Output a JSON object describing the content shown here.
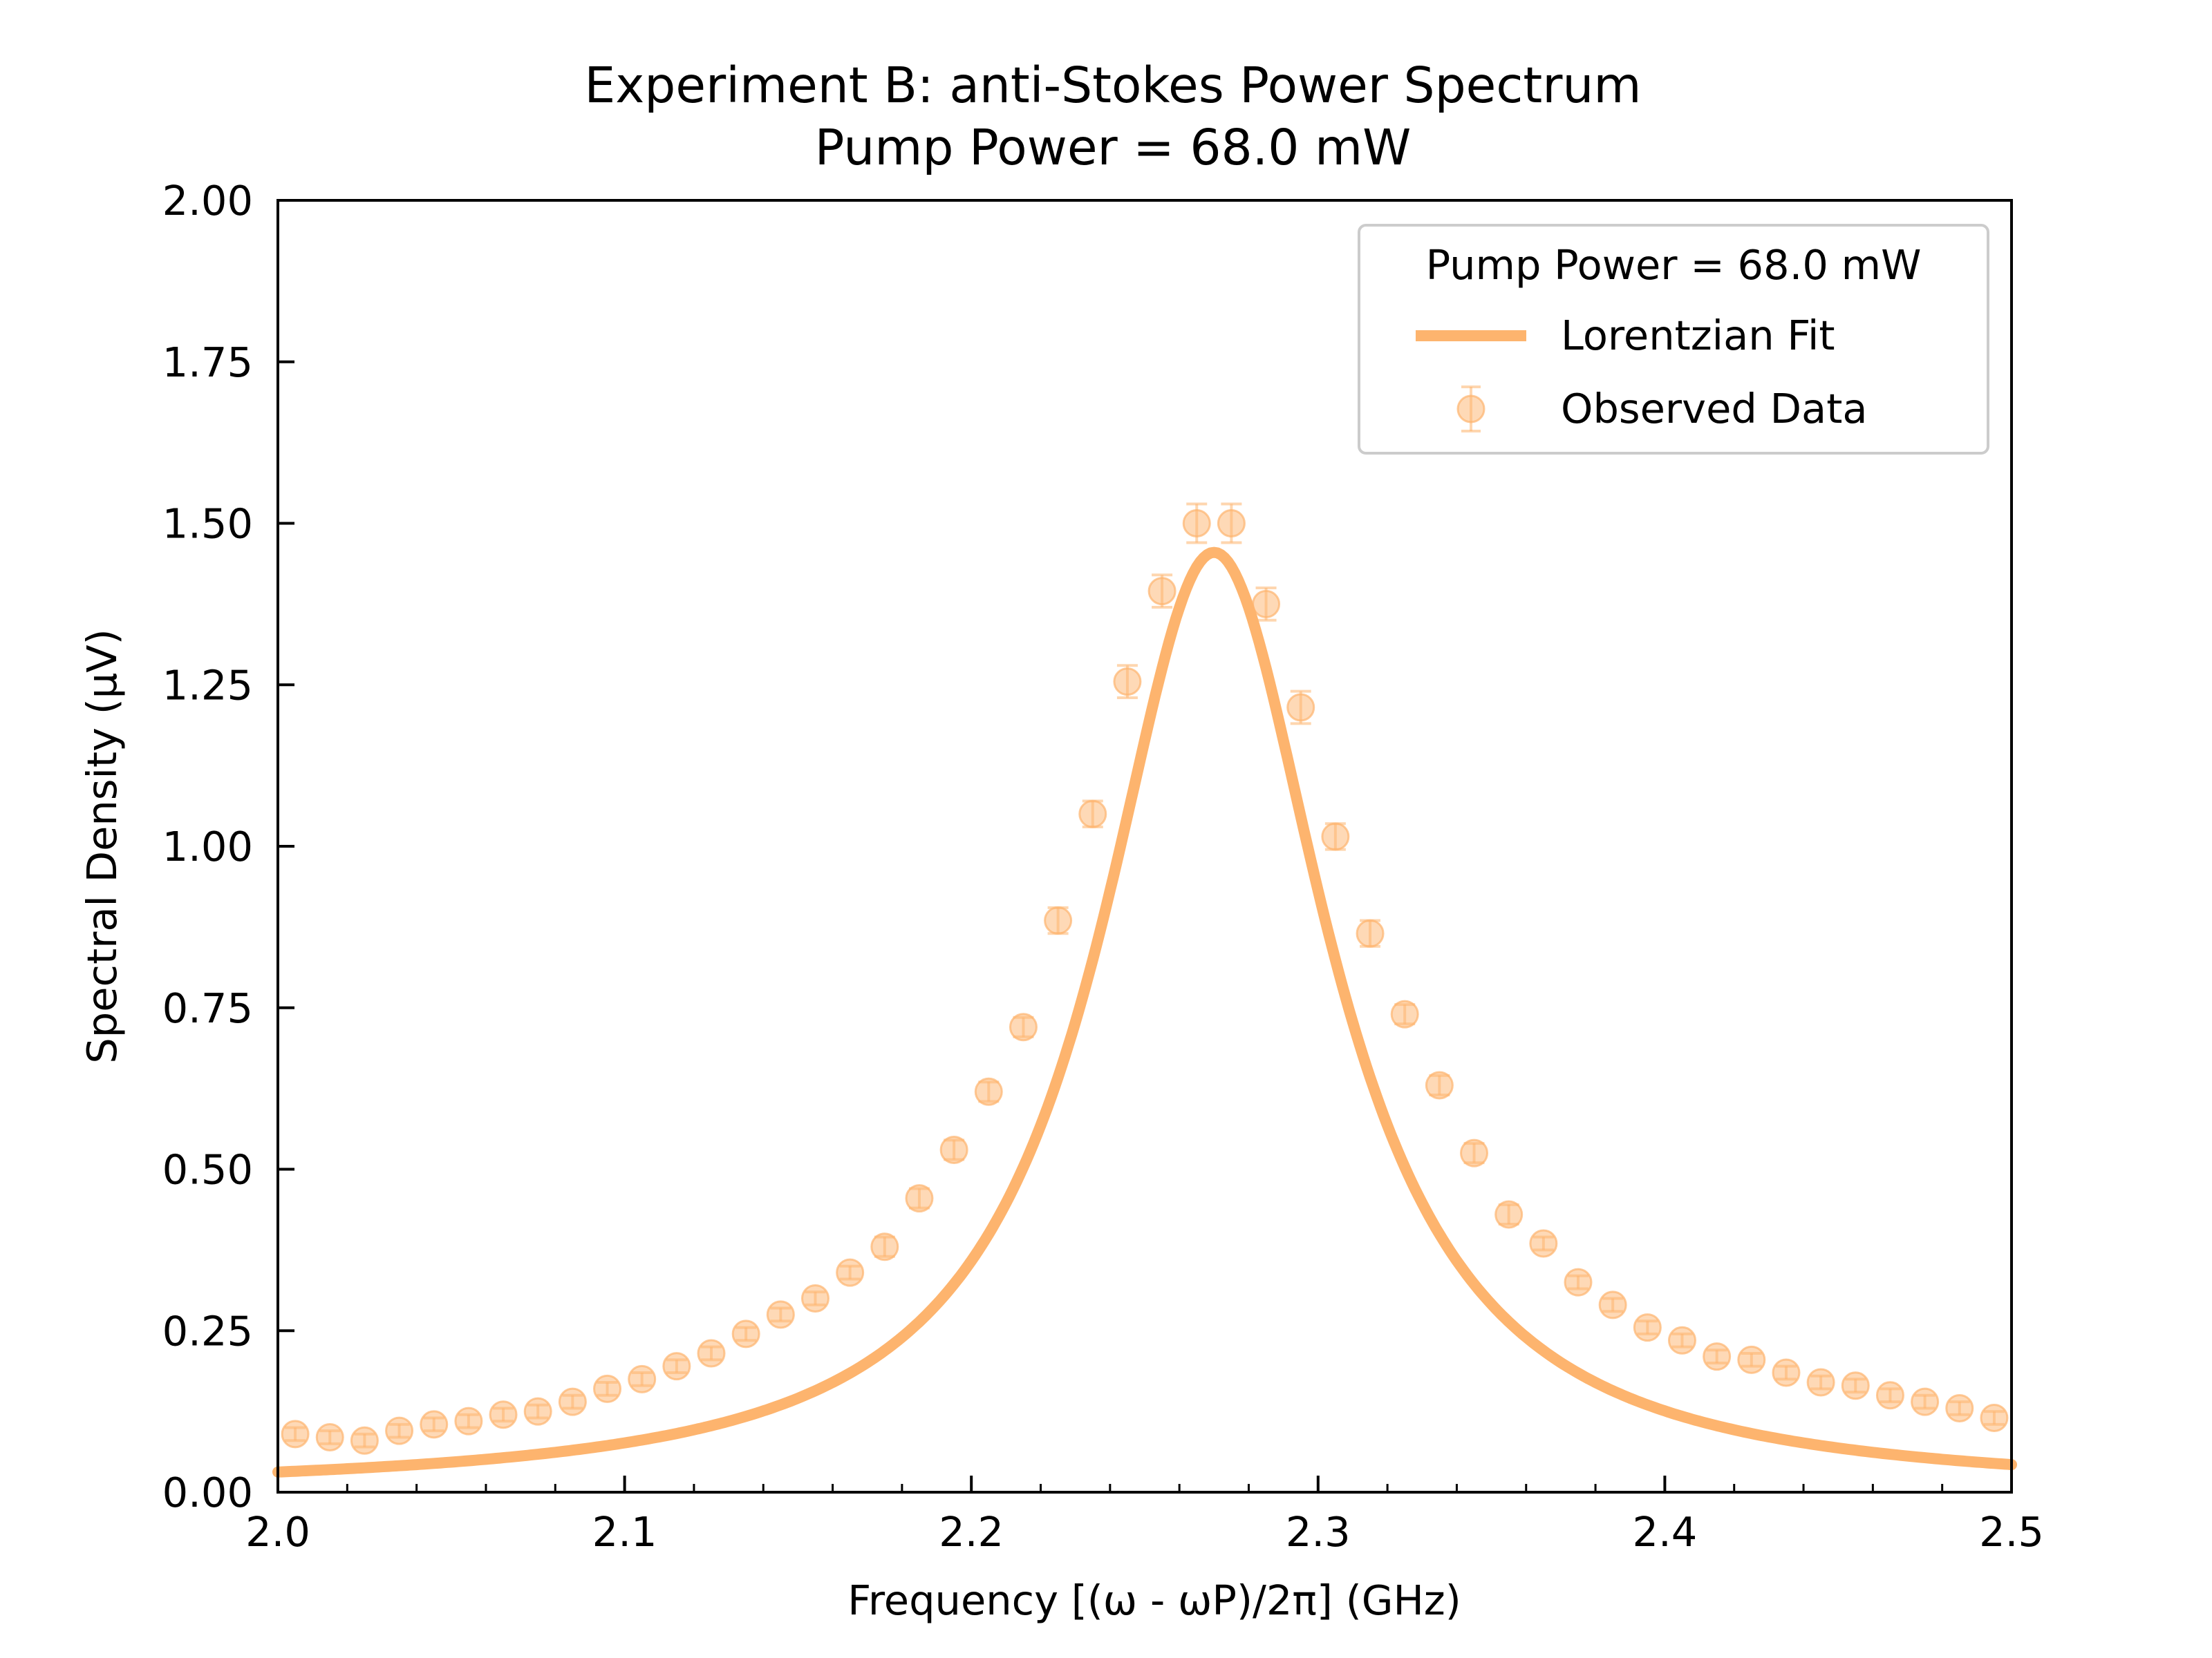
{
  "chart_data": {
    "type": "line",
    "title": "Experiment B: anti-Stokes Power Spectrum",
    "subtitle": "Pump Power = 68.0 mW",
    "xlabel": "Frequency [(ω - ωP)/2π] (GHz)",
    "ylabel": "Spectral Density (μV)",
    "xlim": [
      2.0,
      2.5
    ],
    "ylim": [
      0.0,
      2.0
    ],
    "x_ticks": [
      "2.0",
      "2.1",
      "2.2",
      "2.3",
      "2.4",
      "2.5"
    ],
    "y_ticks": [
      "0.00",
      "0.25",
      "0.50",
      "0.75",
      "1.00",
      "1.25",
      "1.50",
      "1.75",
      "2.00"
    ],
    "grid": false,
    "legend": {
      "title": "Pump Power = 68.0 mW",
      "position": "top-right",
      "entries": [
        "Lorentzian Fit",
        "Observed Data"
      ]
    },
    "colors": {
      "series": "#fdb46e",
      "axis": "#000000"
    },
    "fit": {
      "name": "Lorentzian Fit",
      "model": "lorentzian",
      "center": 2.27,
      "amplitude": 1.455,
      "hwhm": 0.04,
      "offset": 0.0
    },
    "series": [
      {
        "name": "Observed Data",
        "x": [
          2.005,
          2.015,
          2.025,
          2.035,
          2.045,
          2.055,
          2.065,
          2.075,
          2.085,
          2.095,
          2.105,
          2.115,
          2.125,
          2.135,
          2.145,
          2.155,
          2.165,
          2.175,
          2.185,
          2.195,
          2.205,
          2.215,
          2.225,
          2.235,
          2.245,
          2.255,
          2.265,
          2.275,
          2.285,
          2.295,
          2.305,
          2.315,
          2.325,
          2.335,
          2.345,
          2.355,
          2.365,
          2.375,
          2.385,
          2.395,
          2.405,
          2.415,
          2.425,
          2.435,
          2.445,
          2.455,
          2.465,
          2.475,
          2.485,
          2.495
        ],
        "y": [
          0.09,
          0.085,
          0.08,
          0.095,
          0.105,
          0.11,
          0.12,
          0.125,
          0.14,
          0.16,
          0.175,
          0.195,
          0.215,
          0.245,
          0.275,
          0.3,
          0.34,
          0.38,
          0.455,
          0.53,
          0.62,
          0.72,
          0.885,
          1.05,
          1.255,
          1.395,
          1.5,
          1.5,
          1.375,
          1.215,
          1.015,
          0.865,
          0.74,
          0.63,
          0.525,
          0.43,
          0.385,
          0.325,
          0.29,
          0.255,
          0.235,
          0.21,
          0.205,
          0.185,
          0.17,
          0.165,
          0.15,
          0.14,
          0.13,
          0.115
        ],
        "error": [
          0.01,
          0.01,
          0.01,
          0.01,
          0.01,
          0.01,
          0.01,
          0.01,
          0.01,
          0.01,
          0.01,
          0.01,
          0.01,
          0.01,
          0.01,
          0.01,
          0.01,
          0.015,
          0.015,
          0.015,
          0.015,
          0.015,
          0.02,
          0.02,
          0.025,
          0.025,
          0.03,
          0.03,
          0.025,
          0.025,
          0.02,
          0.02,
          0.015,
          0.015,
          0.015,
          0.015,
          0.01,
          0.01,
          0.01,
          0.01,
          0.01,
          0.01,
          0.01,
          0.01,
          0.01,
          0.01,
          0.01,
          0.01,
          0.01,
          0.01
        ]
      }
    ]
  }
}
